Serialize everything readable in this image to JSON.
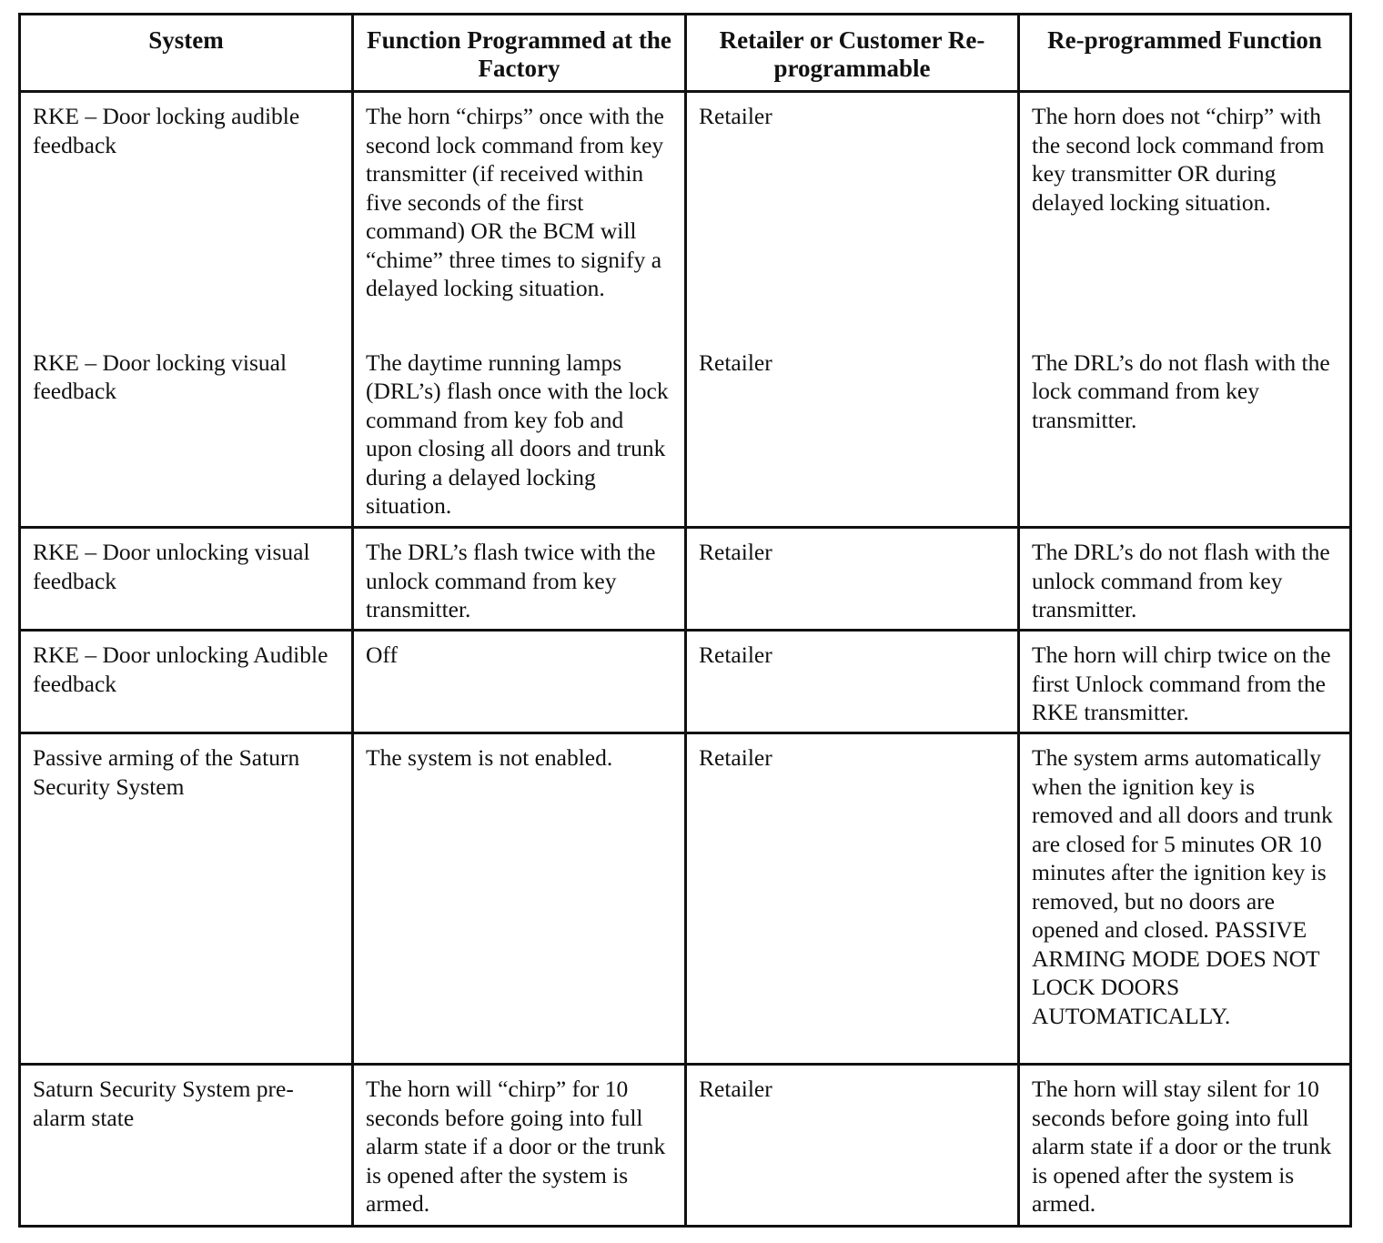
{
  "headers": [
    "System",
    "Function Programmed at the Factory",
    "Retailer or Customer Re-programmable",
    "Re-programmed Function"
  ],
  "rows": [
    {
      "system": "RKE – Door locking audible feedback",
      "factory": "The horn “chirps” once with the second lock command from key transmitter (if received within five seconds of the first command) OR the BCM will “chime” three times to signify a delayed locking situation.",
      "who": "Retailer",
      "reprogrammed": "The horn does not “chirp” with the second lock command from key transmitter OR during delayed locking situation."
    },
    {
      "system": "RKE – Door locking visual feedback",
      "factory": "The daytime running lamps (DRL’s) flash once with the lock command from key fob and upon closing all doors and trunk during a delayed locking situation.",
      "who": "Retailer",
      "reprogrammed": "The DRL’s do not flash with the lock command from key transmitter."
    },
    {
      "system": "RKE – Door unlocking visual feedback",
      "factory": "The DRL’s flash twice with the unlock command from key transmitter.",
      "who": "Retailer",
      "reprogrammed": "The DRL’s do not flash with the unlock command from key transmitter."
    },
    {
      "system": "RKE – Door unlocking Audible feedback",
      "factory": "Off",
      "who": "Retailer",
      "reprogrammed": "The horn will chirp twice on the first Unlock command from the RKE transmitter."
    },
    {
      "system": "Passive arming of the Saturn Security System",
      "factory": "The system is not enabled.",
      "who": "Retailer",
      "reprogrammed": "The system arms automatically when the ignition key is removed and all doors and trunk are closed for 5 minutes OR 10 minutes after the ignition key is removed, but no doors are opened and closed. PASSIVE ARMING MODE DOES NOT LOCK DOORS AUTOMATICALLY."
    },
    {
      "system": "Saturn Security System pre-alarm state",
      "factory": "The horn will “chirp” for 10 seconds before going into full alarm state if a door or the trunk is opened after the system is armed.",
      "who": "Retailer",
      "reprogrammed": "The horn will stay silent for 10 seconds before going into full alarm state if a door or the trunk is opened after the system is armed."
    }
  ]
}
